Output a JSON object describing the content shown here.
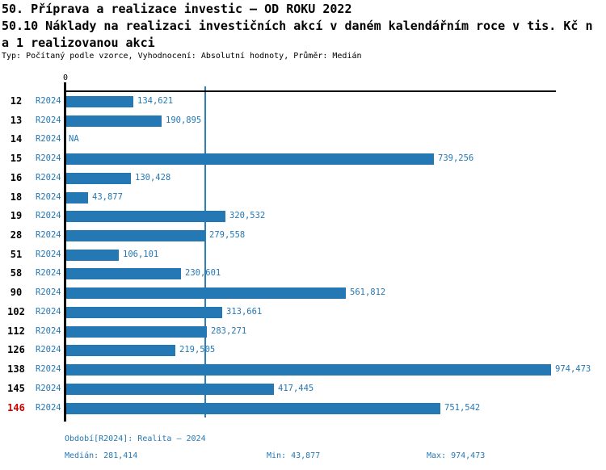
{
  "header": {
    "title": "50. Příprava a realizace investic – OD ROKU 2022",
    "subtitle_line1": "50.10 Náklady na realizaci investičních akcí v daném kalendářním roce v tis. Kč n",
    "subtitle_line2": "a 1 realizovanou akci",
    "meta": "Typ: Počítaný podle vzorce, Vyhodnocení: Absolutní hodnoty, Průměr: Medián"
  },
  "chart_data": {
    "type": "bar",
    "orientation": "horizontal",
    "axis_zero_label": "0",
    "series_label": "R2024",
    "categories": [
      "12",
      "13",
      "14",
      "15",
      "16",
      "18",
      "19",
      "28",
      "51",
      "58",
      "90",
      "102",
      "112",
      "126",
      "138",
      "145",
      "146"
    ],
    "values": [
      134621,
      190895,
      null,
      739256,
      130428,
      43877,
      320532,
      279558,
      106101,
      230601,
      561812,
      313661,
      283271,
      219505,
      974473,
      417445,
      751542
    ],
    "value_labels": [
      "134,621",
      "190,895",
      "NA",
      "739,256",
      "130,428",
      "43,877",
      "320,532",
      "279,558",
      "106,101",
      "230,601",
      "561,812",
      "313,661",
      "283,271",
      "219,505",
      "974,473",
      "417,445",
      "751,542"
    ],
    "na_label": "NA",
    "xmin": 0,
    "xmax": 974473,
    "median_line_value": 281414,
    "highlighted_category": "146",
    "bar_color": "#2478b4",
    "median_line_color": "#2e7fb8",
    "label_color": "#2478b4",
    "highlight_color": "#cc0000",
    "grid": false,
    "legend": false
  },
  "footer": {
    "period": "Období[R2024]: Realita – 2024",
    "median": "Medián: 281,414",
    "min": "Min: 43,877",
    "max": "Max: 974,473"
  }
}
